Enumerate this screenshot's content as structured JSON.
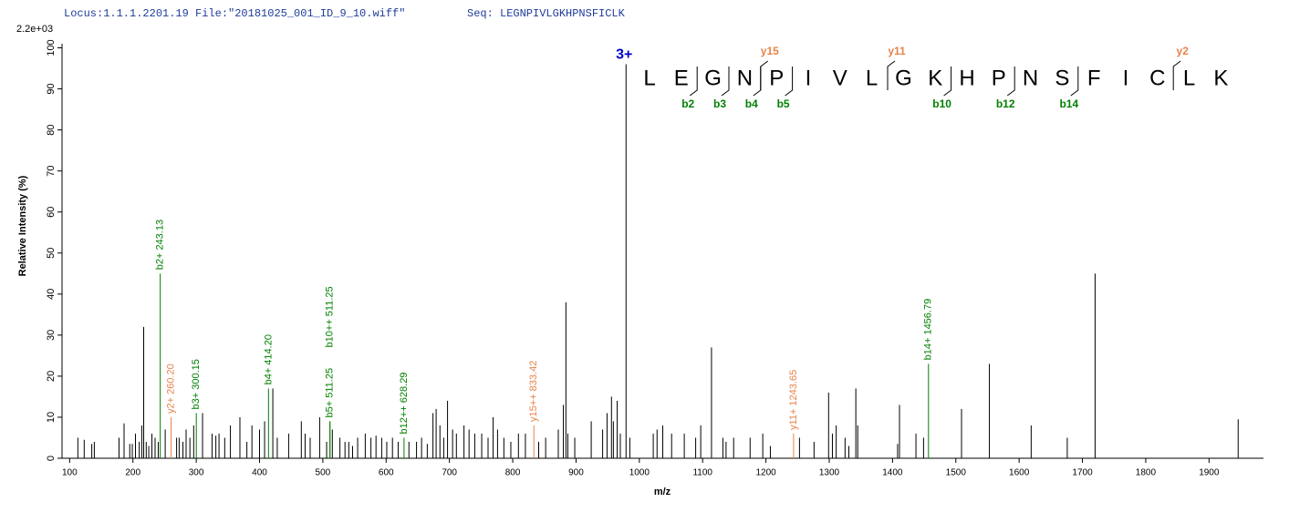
{
  "chart_data": {
    "type": "spectrum",
    "title": "Locus:1.1.1.2201.19 File:\"20181025_001_ID_9_10.wiff\"",
    "seq_label": "Seq: LEGNPIVLGKHPNSFICLK",
    "scale_label": "2.2e+03",
    "xlabel": "m/z",
    "ylabel": "Relative   Intensity (%)",
    "xlim": [
      88,
      1986
    ],
    "ylim": [
      0,
      101
    ],
    "xticks": [
      100,
      200,
      300,
      400,
      500,
      600,
      700,
      800,
      900,
      1000,
      1100,
      1200,
      1300,
      1400,
      1500,
      1600,
      1700,
      1800,
      1900
    ],
    "yticks": [
      0,
      10,
      20,
      30,
      40,
      50,
      60,
      70,
      80,
      90,
      100
    ],
    "peaks": {
      "color": "#000000",
      "x": [
        113,
        123,
        135,
        139,
        178,
        186,
        195,
        199,
        204,
        210,
        214,
        217,
        221,
        225,
        230,
        235,
        240,
        251,
        269,
        273,
        279,
        284,
        290,
        296,
        310,
        325,
        331,
        336,
        345,
        354,
        369,
        380,
        388,
        400,
        408,
        421,
        428,
        446,
        466,
        472,
        480,
        495,
        506,
        515,
        527,
        535,
        541,
        547,
        555,
        567,
        576,
        584,
        593,
        601,
        610,
        619,
        636,
        648,
        656,
        665,
        674,
        679,
        685,
        691,
        697,
        705,
        711,
        723,
        731,
        740,
        751,
        761,
        769,
        776,
        786,
        797,
        809,
        820,
        841,
        852,
        872,
        880,
        884,
        887,
        898,
        924,
        942,
        949,
        956,
        959,
        965,
        970,
        985,
        1022,
        1028,
        1037,
        1051,
        1071,
        1089,
        1097,
        1114,
        1132,
        1137,
        1149,
        1175,
        1195,
        1207,
        1253,
        1276,
        1299,
        1305,
        1311,
        1325,
        1331,
        1342,
        1345,
        1408,
        1411,
        1437,
        1449,
        1509,
        1553,
        1619,
        1676,
        1720,
        1946
      ],
      "values": [
        5,
        4.5,
        3.5,
        4,
        5,
        8.5,
        3.5,
        3.5,
        6,
        4,
        8,
        32,
        4,
        3,
        6,
        5,
        4,
        7,
        5,
        5,
        4,
        7,
        5,
        8,
        11,
        6,
        5.5,
        6,
        5,
        8,
        10,
        4,
        8,
        7,
        9,
        17,
        5,
        6,
        9,
        6,
        5,
        10,
        4,
        7,
        5,
        4,
        4,
        3,
        5,
        6,
        5,
        5.5,
        5,
        4,
        5,
        4,
        4,
        4,
        5,
        3.5,
        11,
        12,
        8,
        5,
        14,
        7,
        6,
        8,
        7,
        6,
        6,
        5,
        10,
        7,
        5,
        4,
        6,
        6,
        4,
        5,
        7,
        13,
        38,
        6,
        5,
        9,
        7,
        11,
        15,
        9,
        14,
        6,
        5,
        6,
        7,
        8,
        6,
        6,
        5,
        8,
        27,
        5,
        4,
        5,
        5,
        6,
        3,
        5,
        4,
        16,
        6,
        8,
        5,
        3,
        17,
        8,
        3.5,
        13,
        6,
        5,
        12,
        23,
        8,
        5,
        45,
        9.5
      ]
    },
    "precursor": {
      "label": "3+",
      "x": 979,
      "value": 96,
      "color": "#0000cc"
    },
    "annotations": [
      {
        "label": "b2+ 243.13",
        "x": 243.13,
        "value": 45,
        "color": "#008000"
      },
      {
        "label": "y2+ 260.20",
        "x": 260.2,
        "value": 10,
        "color": "#e8834a"
      },
      {
        "label": "b3+ 300.15",
        "x": 300.15,
        "value": 11,
        "color": "#008000"
      },
      {
        "label": "b4+ 414.20",
        "x": 414.2,
        "value": 17,
        "color": "#008000"
      },
      {
        "label": "b5+ 511.25",
        "x": 511.25,
        "value": 9,
        "color": "#008000"
      },
      {
        "label": "b10++ 511.25",
        "x": 511.25,
        "value": 9,
        "color": "#008000"
      },
      {
        "label": "b12++ 628.29",
        "x": 628.29,
        "value": 5,
        "color": "#008000"
      },
      {
        "label": "y15++ 833.42",
        "x": 833.42,
        "value": 8,
        "color": "#e8834a"
      },
      {
        "label": "y11+ 1243.65",
        "x": 1243.65,
        "value": 6,
        "color": "#e8834a"
      },
      {
        "label": "b14+ 1456.79",
        "x": 1456.79,
        "value": 23,
        "color": "#008000"
      }
    ],
    "sequence": {
      "letters": [
        "L",
        "E",
        "G",
        "N",
        "P",
        "I",
        "V",
        "L",
        "G",
        "K",
        "H",
        "P",
        "N",
        "S",
        "F",
        "I",
        "C",
        "L",
        "K"
      ],
      "b_ions": [
        "b2",
        "b3",
        "b4",
        "b5",
        "b10",
        "b12",
        "b14"
      ],
      "y_ions": [
        "y15",
        "y11",
        "y2"
      ],
      "b_color": "#008000",
      "y_color": "#e8834a"
    }
  }
}
